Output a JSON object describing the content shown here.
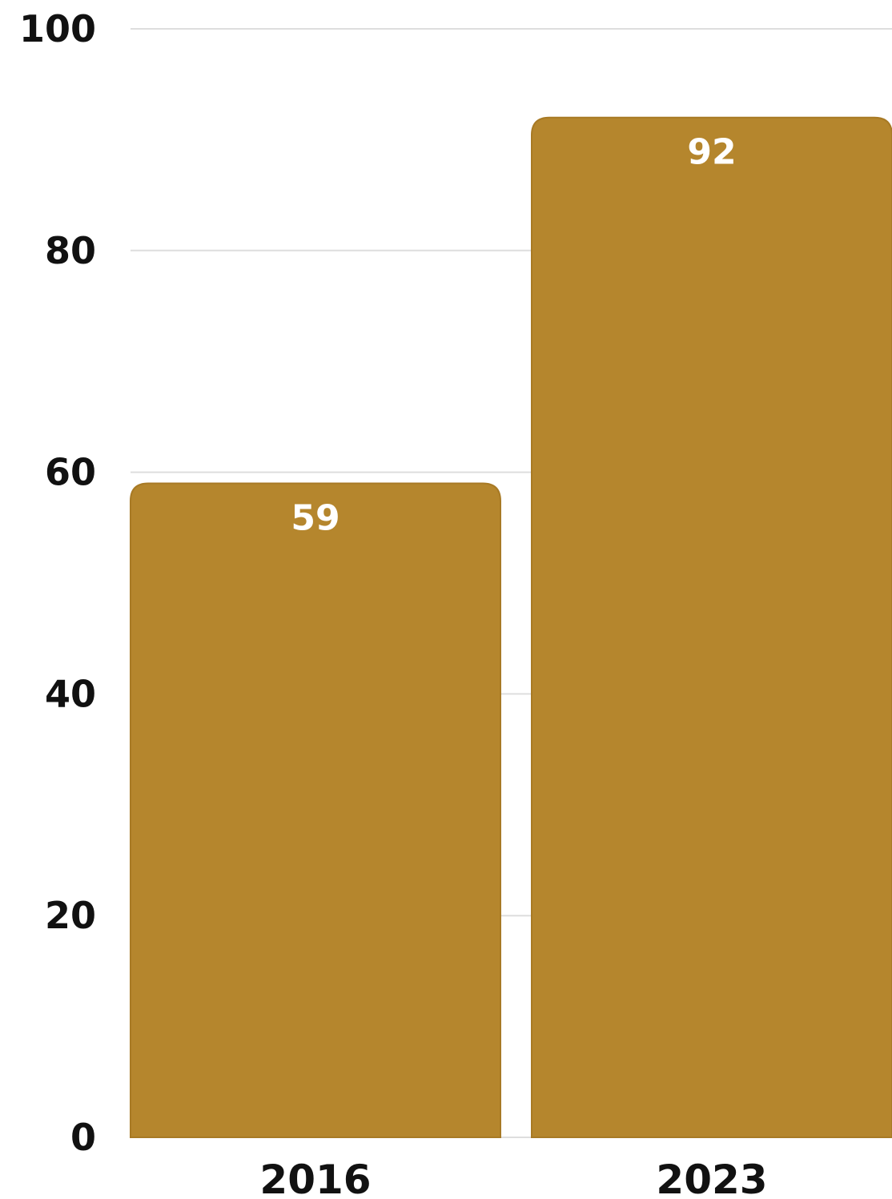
{
  "chart_data": {
    "type": "bar",
    "categories": [
      "2016",
      "2023"
    ],
    "values": [
      59,
      92
    ],
    "title": "",
    "xlabel": "",
    "ylabel": "",
    "ylim": [
      0,
      100
    ],
    "yticks": [
      0,
      20,
      40,
      60,
      80,
      100
    ],
    "grid": true,
    "legend": "none",
    "data_labels": true,
    "colors": {
      "bar": "#b5862d",
      "bar_edge": "#a87a25",
      "grid": "#dedede",
      "text": "#111111",
      "value_label": "#ffffff"
    }
  }
}
